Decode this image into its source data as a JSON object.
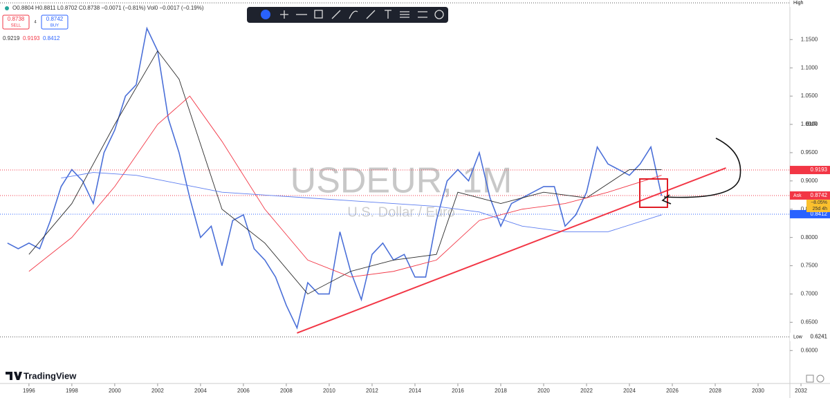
{
  "header": {
    "ohlc": "O0.8804 H0.8811 L0.8702 C0.8738 −0.0071 (−0.81%) Vol0 −0.0017 (−0.19%)",
    "sell_price": "0.8738",
    "sell": "SELL",
    "spread": "4",
    "buy_price": "0.8742",
    "buy": "BUY",
    "ma_values": [
      "0.9219",
      "0.9193",
      "0.8412"
    ]
  },
  "watermark": {
    "symbol": "USDEUR, 1M",
    "description": "U.S. Dollar / Euro"
  },
  "brand": "TradingView",
  "chart_data": {
    "type": "line",
    "currency": "EUR",
    "xlim": [
      1994.65,
      2031.45
    ],
    "xticks": [
      1996,
      1998,
      2000,
      2002,
      2004,
      2006,
      2008,
      2010,
      2012,
      2014,
      2016,
      2018,
      2020,
      2022,
      2024,
      2026,
      2028,
      2030,
      2032
    ],
    "ylim": [
      0.5417,
      1.22
    ],
    "yticks": [
      {
        "value": 0.6,
        "label": "0.6000"
      },
      {
        "value": 0.65,
        "label": "0.6500"
      },
      {
        "value": 0.7,
        "label": "0.7000"
      },
      {
        "value": 0.75,
        "label": "0.7500"
      },
      {
        "value": 0.8,
        "label": "0.8000"
      },
      {
        "value": 0.85,
        "label": "0.8500"
      },
      {
        "value": 0.9,
        "label": "0.9000"
      },
      {
        "value": 0.95,
        "label": "0.9500"
      },
      {
        "value": 1.0,
        "label": "1.0000"
      },
      {
        "value": 1.05,
        "label": "1.0500"
      },
      {
        "value": 1.1,
        "label": "1.1000"
      },
      {
        "value": 1.15,
        "label": "1.1500"
      }
    ],
    "series": [
      {
        "color": "#4a6fd8",
        "x": [
          1995,
          1995.5,
          1996,
          1996.5,
          1997,
          1997.5,
          1998,
          1998.5,
          1999,
          1999.5,
          2000,
          2000.5,
          2001,
          2001.5,
          2002,
          2002.5,
          2003,
          2003.5,
          2004,
          2004.5,
          2005,
          2005.5,
          2006,
          2006.5,
          2007,
          2007.5,
          2008,
          2008.5,
          2009,
          2009.5,
          2010,
          2010.5,
          2011,
          2011.5,
          2012,
          2012.5,
          2013,
          2013.5,
          2014,
          2014.5,
          2015,
          2015.5,
          2016,
          2016.5,
          2017,
          2017.5,
          2018,
          2018.5,
          2019,
          2019.5,
          2020,
          2020.5,
          2021,
          2021.5,
          2022,
          2022.5,
          2023,
          2023.5,
          2024,
          2024.5,
          2025,
          2025.5
        ],
        "values": [
          0.79,
          0.78,
          0.79,
          0.78,
          0.83,
          0.89,
          0.92,
          0.9,
          0.86,
          0.95,
          0.99,
          1.05,
          1.07,
          1.17,
          1.13,
          1.01,
          0.95,
          0.87,
          0.8,
          0.82,
          0.75,
          0.83,
          0.84,
          0.78,
          0.76,
          0.73,
          0.68,
          0.64,
          0.72,
          0.7,
          0.7,
          0.81,
          0.74,
          0.69,
          0.77,
          0.79,
          0.76,
          0.77,
          0.73,
          0.73,
          0.83,
          0.9,
          0.92,
          0.9,
          0.95,
          0.87,
          0.82,
          0.86,
          0.87,
          0.88,
          0.89,
          0.89,
          0.82,
          0.84,
          0.88,
          0.96,
          0.93,
          0.92,
          0.91,
          0.93,
          0.96,
          0.8738
        ]
      },
      {
        "color": "#2b2b2b",
        "x": [
          1996,
          1998,
          2000,
          2002,
          2003,
          2005,
          2007,
          2009,
          2011,
          2013,
          2015,
          2016,
          2018,
          2020,
          2022,
          2024,
          2025.5
        ],
        "values": [
          0.77,
          0.86,
          1.0,
          1.13,
          1.08,
          0.85,
          0.79,
          0.7,
          0.74,
          0.76,
          0.77,
          0.88,
          0.86,
          0.88,
          0.87,
          0.92,
          0.92
        ]
      },
      {
        "color": "#f23645",
        "x": [
          1996,
          1998,
          2000,
          2002,
          2003.5,
          2005,
          2007,
          2009,
          2011,
          2013,
          2015,
          2017,
          2019,
          2021,
          2023,
          2025.5
        ],
        "values": [
          0.74,
          0.8,
          0.89,
          1.0,
          1.05,
          0.97,
          0.85,
          0.76,
          0.73,
          0.74,
          0.76,
          0.83,
          0.85,
          0.86,
          0.88,
          0.91
        ]
      },
      {
        "color": "#5b7cf0",
        "x": [
          1997.5,
          1999,
          2001,
          2003,
          2005,
          2007,
          2009,
          2011,
          2013,
          2015,
          2017,
          2019,
          2021,
          2023,
          2025.5
        ],
        "values": [
          0.905,
          0.915,
          0.91,
          0.895,
          0.88,
          0.875,
          0.87,
          0.865,
          0.86,
          0.855,
          0.845,
          0.82,
          0.81,
          0.81,
          0.84
        ]
      }
    ],
    "trendline": {
      "color": "#f23645",
      "x": [
        2008.5,
        2028.5
      ],
      "values": [
        0.631,
        0.923
      ]
    },
    "price_lines": [
      {
        "name": "High",
        "value": 1.215,
        "color": "#555555"
      },
      {
        "value": 0.9193,
        "color": "#f23645"
      },
      {
        "name": "Ask",
        "value": 0.8742,
        "color": "#f23645"
      },
      {
        "value": 0.8412,
        "color": "#2962ff"
      },
      {
        "name": "Low",
        "value": 0.6241,
        "color": "#555555"
      }
    ],
    "change_label": "−8.05%",
    "countdown": "25d 4h"
  }
}
